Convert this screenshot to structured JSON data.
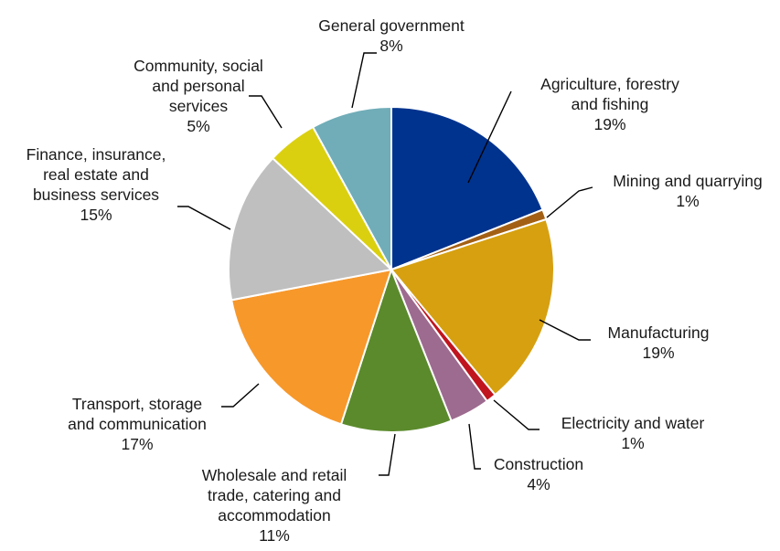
{
  "chart_data": {
    "type": "pie",
    "start_angle_deg": 0,
    "direction": "clockwise",
    "slices": [
      {
        "label_lines": [
          "Agriculture, forestry",
          "and fishing"
        ],
        "value": 19,
        "percent_label": "19%",
        "color": "#00338e"
      },
      {
        "label_lines": [
          "Mining and quarrying"
        ],
        "value": 1,
        "percent_label": "1%",
        "color": "#a36014"
      },
      {
        "label_lines": [
          "Manufacturing"
        ],
        "value": 19,
        "percent_label": "19%",
        "color": "#d6a010"
      },
      {
        "label_lines": [
          "Electricity and water"
        ],
        "value": 1,
        "percent_label": "1%",
        "color": "#c0151f"
      },
      {
        "label_lines": [
          "Construction"
        ],
        "value": 4,
        "percent_label": "4%",
        "color": "#9d6b8f"
      },
      {
        "label_lines": [
          "Wholesale and retail",
          "trade, catering and",
          "accommodation"
        ],
        "value": 11,
        "percent_label": "11%",
        "color": "#5b8a2c"
      },
      {
        "label_lines": [
          "Transport, storage",
          "and communication"
        ],
        "value": 17,
        "percent_label": "17%",
        "color": "#f7982b"
      },
      {
        "label_lines": [
          "Finance, insurance,",
          "real estate and",
          "business services"
        ],
        "value": 15,
        "percent_label": "15%",
        "color": "#bfbfbf"
      },
      {
        "label_lines": [
          "Community, social",
          "and personal",
          "services"
        ],
        "value": 5,
        "percent_label": "5%",
        "color": "#dbd010"
      },
      {
        "label_lines": [
          "General government"
        ],
        "value": 8,
        "percent_label": "8%",
        "color": "#70adb8"
      }
    ]
  }
}
